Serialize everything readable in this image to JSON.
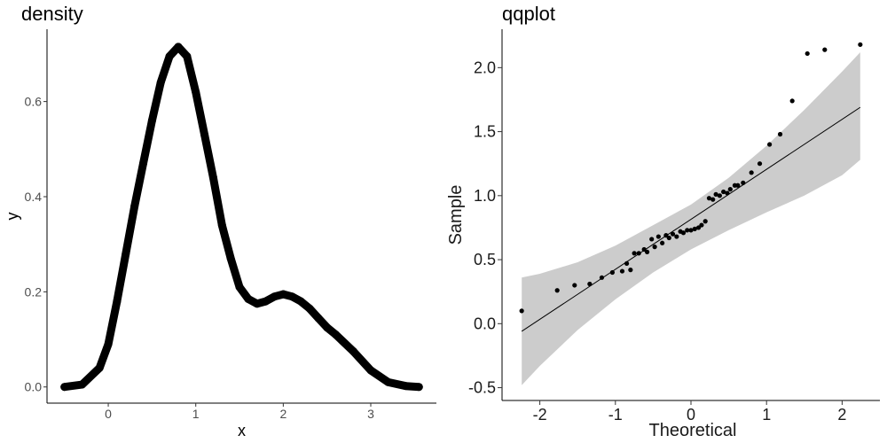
{
  "chart_data": [
    {
      "type": "line",
      "title": "density",
      "xlabel": "x",
      "ylabel": "y",
      "xlim": [
        -0.7,
        3.75
      ],
      "ylim": [
        -0.034,
        0.752
      ],
      "xticks": [
        0,
        1,
        2,
        3
      ],
      "yticks": [
        0.0,
        0.2,
        0.4,
        0.6
      ],
      "xtick_labels": [
        "0",
        "1",
        "2",
        "3"
      ],
      "ytick_labels": [
        "0.0",
        "0.2",
        "0.4",
        "0.6"
      ],
      "grid": false,
      "series": [
        {
          "x": [
            -0.5,
            -0.3,
            -0.1,
            0.0,
            0.1,
            0.2,
            0.3,
            0.4,
            0.5,
            0.6,
            0.7,
            0.8,
            0.9,
            1.0,
            1.1,
            1.2,
            1.3,
            1.4,
            1.5,
            1.6,
            1.7,
            1.8,
            1.9,
            2.0,
            2.1,
            2.2,
            2.3,
            2.4,
            2.5,
            2.6,
            2.8,
            3.0,
            3.2,
            3.4,
            3.55
          ],
          "y": [
            0.0,
            0.005,
            0.04,
            0.09,
            0.18,
            0.28,
            0.38,
            0.47,
            0.56,
            0.64,
            0.695,
            0.715,
            0.695,
            0.62,
            0.53,
            0.44,
            0.34,
            0.27,
            0.21,
            0.185,
            0.175,
            0.18,
            0.19,
            0.195,
            0.19,
            0.18,
            0.165,
            0.145,
            0.125,
            0.11,
            0.075,
            0.035,
            0.01,
            0.002,
            0.0
          ]
        }
      ]
    },
    {
      "type": "scatter",
      "title": "qqplot",
      "xlabel": "Theoretical",
      "ylabel": "Sample",
      "xlim": [
        -2.5,
        2.5
      ],
      "ylim": [
        -0.6,
        2.3
      ],
      "xticks": [
        -2,
        -1,
        0,
        1,
        2
      ],
      "yticks": [
        -0.5,
        0.0,
        0.5,
        1.0,
        1.5,
        2.0
      ],
      "xtick_labels": [
        "-2",
        "-1",
        "0",
        "1",
        "2"
      ],
      "ytick_labels": [
        "-0.5",
        "0.0",
        "0.5",
        "1.0",
        "1.5",
        "2.0"
      ],
      "grid": false,
      "points": {
        "x": [
          -2.24,
          -1.77,
          -1.54,
          -1.34,
          -1.18,
          -1.04,
          -0.91,
          -0.8,
          -0.69,
          -0.58,
          -0.48,
          -0.38,
          -0.29,
          -0.19,
          -0.1,
          0.0,
          0.1,
          0.19,
          0.29,
          0.38,
          0.48,
          0.58,
          0.69,
          0.8,
          0.91,
          1.04,
          1.18,
          1.34,
          1.54,
          1.77,
          2.24,
          -0.85,
          -0.75,
          -0.62,
          -0.52,
          -0.43,
          -0.33,
          -0.24,
          -0.14,
          -0.05,
          0.05,
          0.14,
          0.24,
          0.33,
          0.43,
          0.52,
          0.62
        ],
        "y": [
          0.1,
          0.26,
          0.3,
          0.31,
          0.36,
          0.4,
          0.41,
          0.42,
          0.55,
          0.56,
          0.6,
          0.63,
          0.67,
          0.68,
          0.71,
          0.73,
          0.75,
          0.8,
          0.97,
          1.0,
          1.02,
          1.08,
          1.1,
          1.18,
          1.25,
          1.4,
          1.48,
          1.74,
          2.11,
          2.14,
          2.18,
          0.47,
          0.55,
          0.58,
          0.66,
          0.68,
          0.69,
          0.7,
          0.72,
          0.73,
          0.74,
          0.77,
          0.98,
          1.01,
          1.03,
          1.05,
          1.08
        ]
      },
      "reference_line": {
        "x": [
          -2.24,
          2.24
        ],
        "y": [
          -0.06,
          1.69
        ]
      },
      "confidence_band": {
        "x": [
          -2.24,
          -2.0,
          -1.5,
          -1.0,
          -0.5,
          0.0,
          0.5,
          1.0,
          1.5,
          2.0,
          2.24
        ],
        "lower": [
          -0.48,
          -0.33,
          -0.05,
          0.19,
          0.4,
          0.58,
          0.73,
          0.87,
          1.0,
          1.16,
          1.28
        ],
        "upper": [
          0.36,
          0.39,
          0.48,
          0.61,
          0.77,
          0.93,
          1.14,
          1.39,
          1.67,
          1.97,
          2.12
        ]
      },
      "colors": {
        "band": "#cccccc",
        "points": "#000000",
        "line": "#000000"
      }
    }
  ]
}
